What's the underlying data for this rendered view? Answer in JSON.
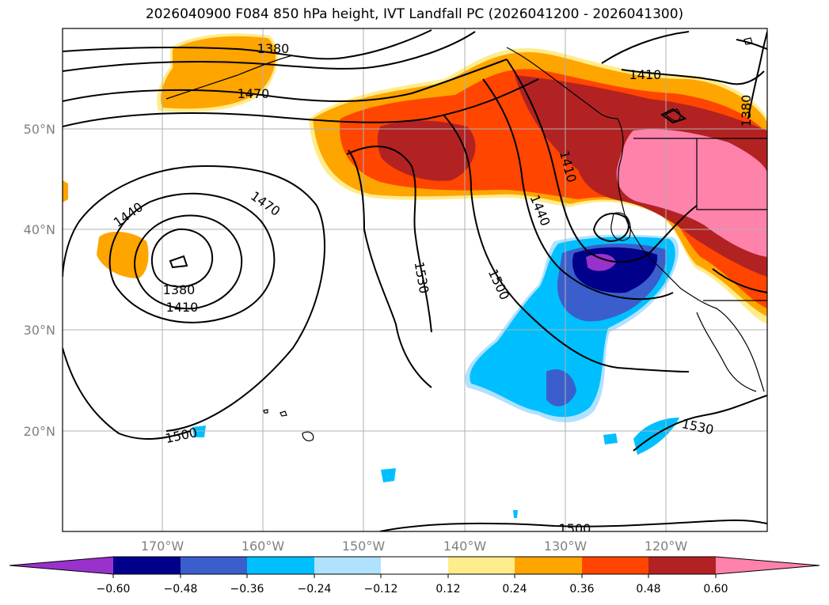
{
  "title": "2026040900 F084 850 hPa height, IVT Landfall PC (2026041200 - 2026041300)",
  "lat_labels": [
    {
      "lat": 50,
      "text": "50°N"
    },
    {
      "lat": 40,
      "text": "40°N"
    },
    {
      "lat": 30,
      "text": "30°N"
    },
    {
      "lat": 20,
      "text": "20°N"
    }
  ],
  "lon_labels": [
    {
      "lon": -170,
      "text": "170°W"
    },
    {
      "lon": -160,
      "text": "160°W"
    },
    {
      "lon": -150,
      "text": "150°W"
    },
    {
      "lon": -140,
      "text": "140°W"
    },
    {
      "lon": -130,
      "text": "130°W"
    },
    {
      "lon": -120,
      "text": "120°W"
    }
  ],
  "contour_labels": [
    "1380",
    "1470",
    "1410",
    "1380",
    "1440",
    "1470",
    "1380",
    "1410",
    "1530",
    "1500",
    "1410",
    "1440",
    "1500",
    "1530",
    "1500"
  ],
  "colorbar": {
    "colors": [
      "#9932cc",
      "#00008b",
      "#3a5fcd",
      "#00bfff",
      "#b0e2ff",
      "#ffffff",
      "#ffec8b",
      "#ffa500",
      "#ff4500",
      "#b22222",
      "#ff82ab"
    ],
    "ticks": [
      "−0.60",
      "−0.48",
      "−0.36",
      "−0.24",
      "−0.12",
      "0.12",
      "0.24",
      "0.36",
      "0.48",
      "0.60"
    ]
  }
}
